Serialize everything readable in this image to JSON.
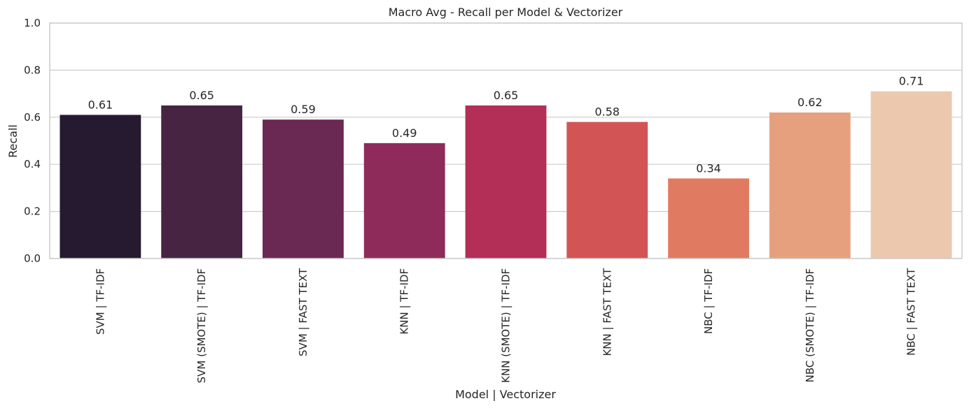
{
  "chart_data": {
    "type": "bar",
    "title": "Macro Avg - Recall per Model & Vectorizer",
    "xlabel": "Model | Vectorizer",
    "ylabel": "Recall",
    "ylim": [
      0,
      1.0
    ],
    "yticks": [
      "0.0",
      "0.2",
      "0.4",
      "0.6",
      "0.8",
      "1.0"
    ],
    "grid": true,
    "categories": [
      "SVM | TF-IDF",
      "SVM (SMOTE) | TF-IDF",
      "SVM | FAST TEXT",
      "KNN | TF-IDF",
      "KNN (SMOTE) | TF-IDF",
      "KNN | FAST TEXT",
      "NBC | TF-IDF",
      "NBC (SMOTE) | TF-IDF",
      "NBC | FAST TEXT"
    ],
    "values": [
      0.61,
      0.65,
      0.59,
      0.49,
      0.65,
      0.58,
      0.34,
      0.62,
      0.71
    ],
    "value_labels": [
      "0.61",
      "0.65",
      "0.59",
      "0.49",
      "0.65",
      "0.58",
      "0.34",
      "0.62",
      "0.71"
    ],
    "colors": [
      "#261a31",
      "#462442",
      "#6a2953",
      "#8f2b5b",
      "#b42f57",
      "#d35454",
      "#e07b62",
      "#e6a07e",
      "#ecc8ae"
    ]
  }
}
